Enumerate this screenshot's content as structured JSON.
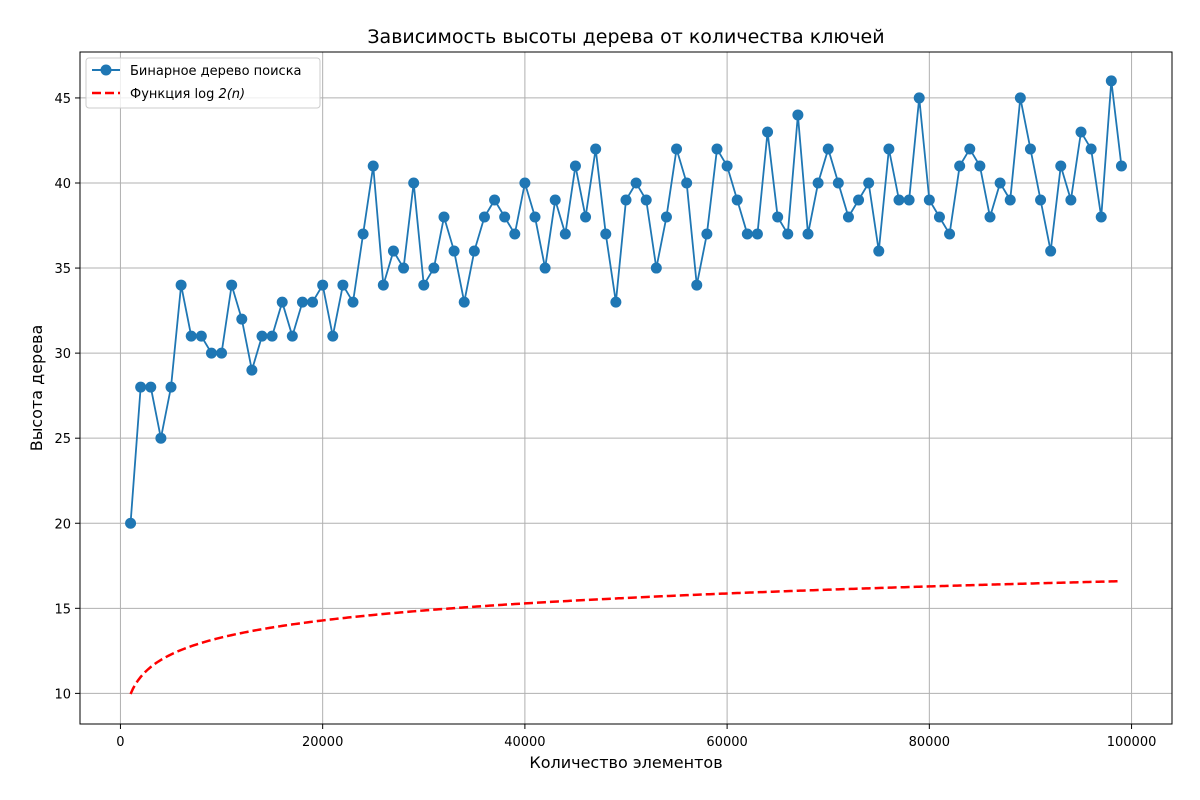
{
  "chart_data": {
    "type": "line",
    "title": "Зависимость высоты дерева от количества ключей",
    "xlabel": "Количество элементов",
    "ylabel": "Высота дерева",
    "xlim": [
      -4000,
      104000
    ],
    "ylim": [
      8.2,
      47.7
    ],
    "xticks": [
      0,
      20000,
      40000,
      60000,
      80000,
      100000
    ],
    "yticks": [
      10,
      15,
      20,
      25,
      30,
      35,
      40,
      45
    ],
    "grid": true,
    "legend_position": "upper-left",
    "colors": {
      "bst": "#1f77b4",
      "log": "#ff0000"
    },
    "series": [
      {
        "name": "Бинарное дерево поиска",
        "style": "solid-with-circle-markers",
        "x_start": 1000,
        "x_step": 1000,
        "values": [
          20,
          28,
          28,
          25,
          28,
          34,
          31,
          31,
          30,
          30,
          34,
          32,
          29,
          31,
          31,
          33,
          31,
          33,
          33,
          34,
          31,
          34,
          33,
          37,
          41,
          34,
          36,
          35,
          40,
          34,
          35,
          38,
          36,
          33,
          36,
          38,
          39,
          38,
          37,
          40,
          38,
          35,
          39,
          37,
          41,
          38,
          42,
          37,
          33,
          39,
          40,
          39,
          35,
          38,
          42,
          40,
          34,
          37,
          42,
          41,
          39,
          37,
          37,
          43,
          38,
          37,
          44,
          37,
          40,
          42,
          40,
          38,
          39,
          40,
          36,
          42,
          39,
          39,
          45,
          39,
          38,
          37,
          41,
          42,
          41,
          38,
          40,
          39,
          45,
          42,
          39,
          36,
          41,
          39,
          43,
          42,
          38,
          46,
          41
        ]
      },
      {
        "name_prefix": "Функция",
        "name_math_func": "log",
        "name_math_arg": "2(n)",
        "style": "dashed",
        "function": "log2",
        "x_range": [
          1000,
          99000
        ]
      }
    ]
  }
}
